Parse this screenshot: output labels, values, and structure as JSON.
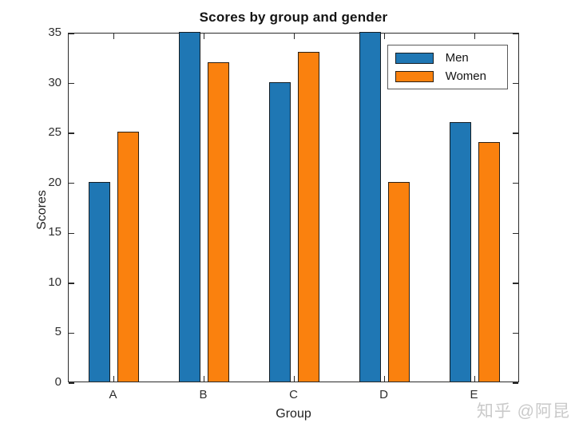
{
  "figure": {
    "title": "Scores by group and gender",
    "xlabel": "Group",
    "ylabel": "Scores"
  },
  "watermark": "知乎 @阿昆",
  "chart_data": {
    "type": "bar",
    "title": "Scores by group and gender",
    "xlabel": "Group",
    "ylabel": "Scores",
    "categories": [
      "A",
      "B",
      "C",
      "D",
      "E"
    ],
    "series": [
      {
        "name": "Men",
        "color": "#1f77b4",
        "values": [
          20,
          35,
          30,
          35,
          26
        ]
      },
      {
        "name": "Women",
        "color": "#fa810e",
        "values": [
          25,
          32,
          33,
          20,
          24
        ]
      }
    ],
    "ylim": [
      0,
      35
    ],
    "ytick_step": 5,
    "grid": false,
    "legend_position": "top-right",
    "axes_box": true,
    "bar_edge_color": "#1c1c1c",
    "axis_color": "#2a2a2a"
  }
}
